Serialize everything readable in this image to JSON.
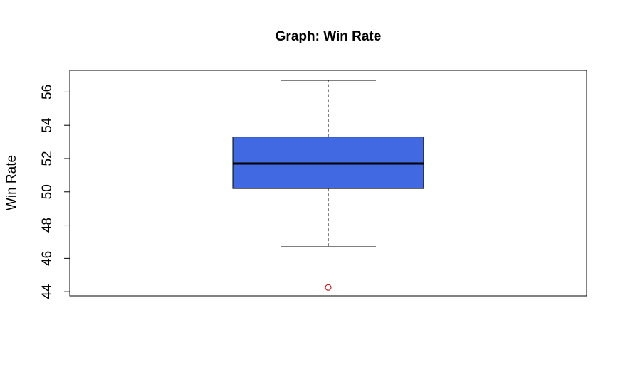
{
  "chart_data": {
    "type": "boxplot",
    "title": "Graph: Win Rate",
    "xlabel": "",
    "ylabel": "Win Rate",
    "ylim": [
      43.75,
      57.3
    ],
    "yticks": [
      44,
      46,
      48,
      50,
      52,
      54,
      56
    ],
    "ytick_labels": [
      "44",
      "46",
      "48",
      "50",
      "52",
      "54",
      "56"
    ],
    "box": {
      "whisker_low": 46.7,
      "q1": 50.2,
      "median": 51.7,
      "q3": 53.3,
      "whisker_high": 56.7
    },
    "outliers": [
      44.25
    ],
    "box_color": "#4169E1",
    "outlier_color": "#CC0000",
    "grid": false
  }
}
